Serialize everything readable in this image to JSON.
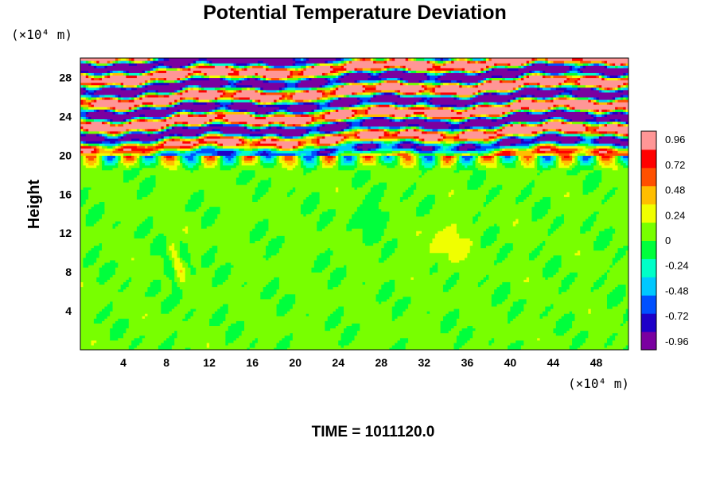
{
  "chart_data": {
    "type": "heatmap",
    "title": "Potential Temperature Deviation",
    "xlabel": "",
    "ylabel": "Height",
    "x_unit": "(×10⁴ m)",
    "y_unit": "(×10⁴ m)",
    "xlim": [
      0,
      51
    ],
    "ylim": [
      0,
      30
    ],
    "x_ticks": [
      4,
      8,
      12,
      16,
      20,
      24,
      28,
      32,
      36,
      40,
      44,
      48
    ],
    "y_ticks": [
      4,
      8,
      12,
      16,
      20,
      24,
      28
    ],
    "colorbar": {
      "range": [
        -1.04,
        1.04
      ],
      "tick_values": [
        0.96,
        0.72,
        0.48,
        0.24,
        0,
        -0.24,
        -0.48,
        -0.72,
        -0.96
      ],
      "tick_labels": [
        "0.96",
        "0.72",
        "0.48",
        "0.24",
        "0",
        "-0.24",
        "-0.48",
        "-0.72",
        "-0.96"
      ]
    },
    "grid": false,
    "footer": "TIME = 1011120.0",
    "field_description": {
      "lower_layer_height_range": [
        0,
        20
      ],
      "lower_layer_typical_value": 0.05,
      "upper_layer_height_range": [
        20,
        30
      ],
      "upper_layer_amplitude": 0.96
    }
  },
  "colors": {
    "colormap": [
      "#7a00a0",
      "#1e00c8",
      "#0050ff",
      "#00c8ff",
      "#00ffc8",
      "#00ff3c",
      "#78ff00",
      "#f0ff00",
      "#ffbe00",
      "#ff5000",
      "#ff0000",
      "#ff9696"
    ]
  }
}
